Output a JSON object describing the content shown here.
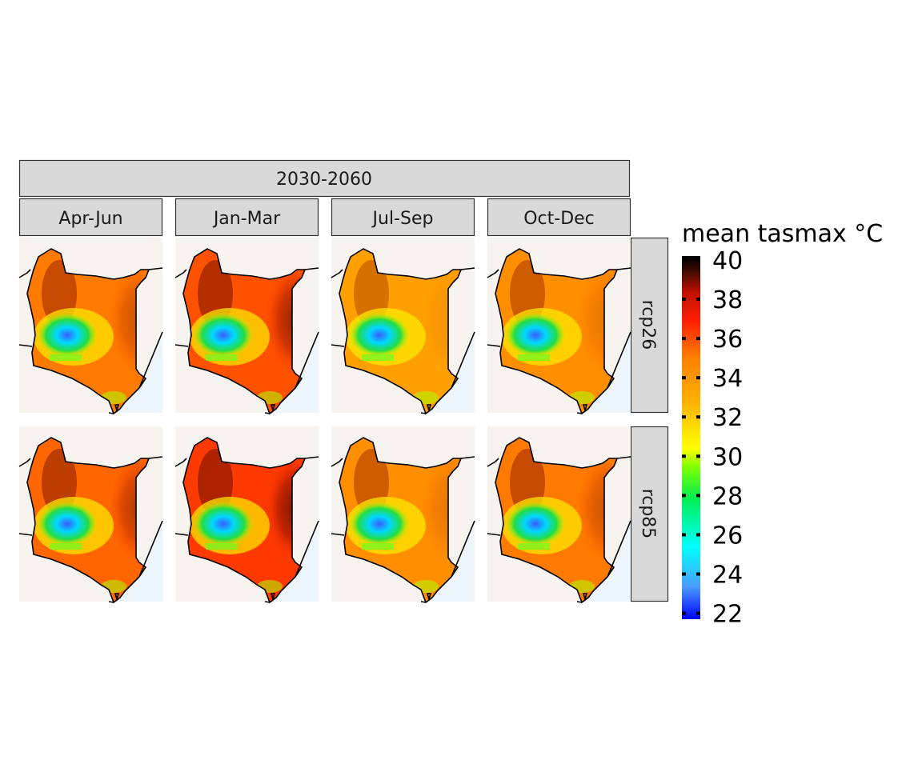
{
  "figure": {
    "period": "2030-2060",
    "seasons": [
      "Apr-Jun",
      "Jan-Mar",
      "Jul-Sep",
      "Oct-Dec"
    ],
    "scenarios": [
      "rcp26",
      "rcp85"
    ]
  },
  "legend": {
    "title": "mean tasmax °C",
    "min": 21.7,
    "max": 40.2,
    "ticks": [
      "40",
      "38",
      "36",
      "34",
      "32",
      "30",
      "28",
      "26",
      "24",
      "22"
    ],
    "tick_values": [
      40,
      38,
      36,
      34,
      32,
      30,
      28,
      26,
      24,
      22
    ]
  },
  "colors": {
    "scale": [
      "#0000ff",
      "#4a9dff",
      "#00ffff",
      "#00ee55",
      "#7fff00",
      "#ffff00",
      "#ffb000",
      "#ff8000",
      "#ff2000",
      "#c01000",
      "#3a0a00",
      "#000000"
    ],
    "strip": "#d9d9d9",
    "land_bg": "#f7f3ee",
    "sea": "#eef6fd"
  },
  "map_data": {
    "variable": "mean tasmax",
    "units": "°C",
    "panel_means": {
      "rcp26": {
        "Apr-Jun": 35,
        "Jan-Mar": 37,
        "Jul-Sep": 33,
        "Oct-Dec": 34
      },
      "rcp85": {
        "Apr-Jun": 36,
        "Jan-Mar": 38,
        "Jul-Sep": 34,
        "Oct-Dec": 35
      }
    }
  }
}
